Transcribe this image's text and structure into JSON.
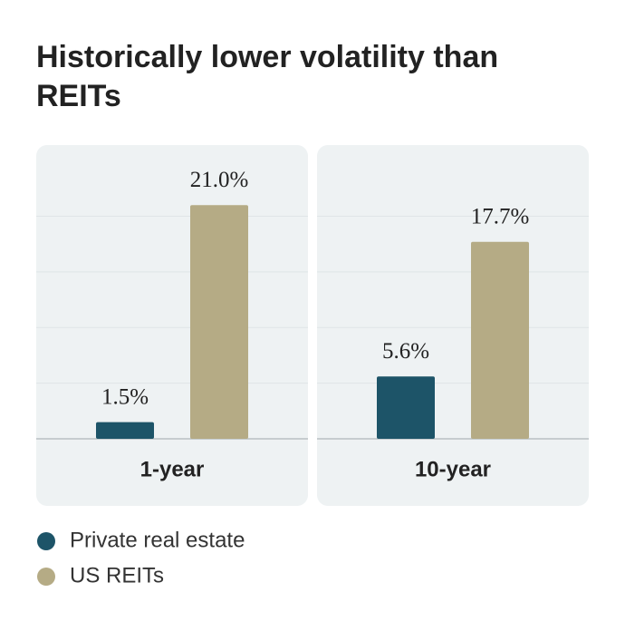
{
  "chart_data": {
    "type": "bar",
    "title": "Historically lower volatility than REITs",
    "categories": [
      "1-year",
      "10-year"
    ],
    "series": [
      {
        "name": "Private real estate",
        "color": "#1d5468",
        "values": [
          1.5,
          5.6
        ],
        "value_labels": [
          "1.5%",
          "5.6%"
        ]
      },
      {
        "name": "US REITs",
        "color": "#b5ab85",
        "values": [
          21.0,
          17.7
        ],
        "value_labels": [
          "21.0%",
          "17.7%"
        ]
      }
    ],
    "ylim": [
      0,
      26.4
    ],
    "yticks": [
      0,
      5,
      10,
      15,
      20
    ],
    "grid": true
  }
}
